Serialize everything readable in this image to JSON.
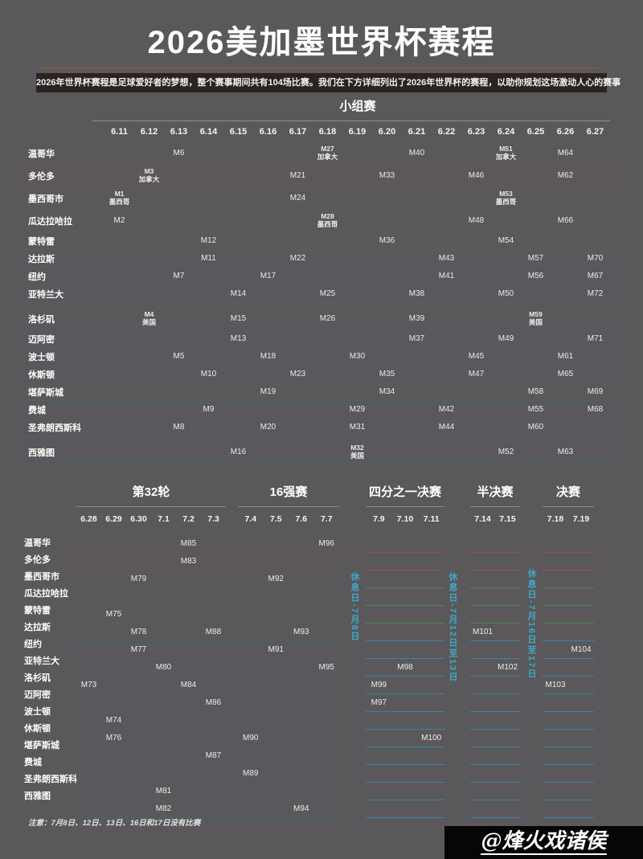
{
  "title": "2026美加墨世界杯赛程",
  "subtitle": "2026年世界杯赛程是足球爱好者的梦想，整个赛事期间共有104场比赛。我们在下方详细列出了2026年世界杯的赛程，以助你规划这场激动人心的赛事",
  "note": "注意：7月8日、12日、13日、16日和17日没有比赛",
  "watermark": "@烽火戏诸侯",
  "colors": {
    "background": "#5a585a",
    "subtitle_bar": "#29241f",
    "title_divider": "#7d5a49",
    "canada_accent": "#d23c33",
    "mexico_accent": "#4eb44c",
    "usa_accent": "#41a9d8",
    "rest_day_text": "#3fa9c9"
  },
  "chart_data": {
    "type": "table",
    "title": "2026美加墨世界杯赛程",
    "group_stage": {
      "heading": "小组赛",
      "dates": [
        "6.11",
        "6.12",
        "6.13",
        "6.14",
        "6.15",
        "6.16",
        "6.17",
        "6.18",
        "6.19",
        "6.20",
        "6.21",
        "6.22",
        "6.23",
        "6.24",
        "6.25",
        "6.26",
        "6.27"
      ],
      "rows": [
        {
          "city": "温哥华",
          "country": "canada",
          "matches": [
            {
              "date": "6.13",
              "m": "M6"
            },
            {
              "date": "6.18",
              "m": "M27",
              "tag": "加拿大",
              "color": "canada"
            },
            {
              "date": "6.21",
              "m": "M40"
            },
            {
              "date": "6.24",
              "m": "M51",
              "tag": "加拿大",
              "color": "canada"
            },
            {
              "date": "6.26",
              "m": "M64"
            }
          ]
        },
        {
          "city": "多伦多",
          "country": "canada",
          "matches": [
            {
              "date": "6.12",
              "m": "M3",
              "tag": "加拿大",
              "color": "canada"
            },
            {
              "date": "6.17",
              "m": "M21"
            },
            {
              "date": "6.20",
              "m": "M33"
            },
            {
              "date": "6.23",
              "m": "M46"
            },
            {
              "date": "6.26",
              "m": "M62"
            }
          ]
        },
        {
          "city": "墨西哥市",
          "country": "mexico",
          "matches": [
            {
              "date": "6.11",
              "m": "M1",
              "tag": "墨西哥",
              "color": "mexico"
            },
            {
              "date": "6.17",
              "m": "M24"
            },
            {
              "date": "6.24",
              "m": "M53",
              "tag": "墨西哥",
              "color": "mexico"
            }
          ]
        },
        {
          "city": "瓜达拉哈拉",
          "country": "mexico",
          "matches": [
            {
              "date": "6.11",
              "m": "M2"
            },
            {
              "date": "6.18",
              "m": "M28",
              "tag": "墨西哥",
              "color": "mexico"
            },
            {
              "date": "6.23",
              "m": "M48"
            },
            {
              "date": "6.26",
              "m": "M66"
            }
          ]
        },
        {
          "city": "蒙特雷",
          "country": "mexico",
          "matches": [
            {
              "date": "6.14",
              "m": "M12"
            },
            {
              "date": "6.20",
              "m": "M36"
            },
            {
              "date": "6.24",
              "m": "M54"
            }
          ]
        },
        {
          "city": "达拉斯",
          "country": "usa",
          "matches": [
            {
              "date": "6.14",
              "m": "M11"
            },
            {
              "date": "6.17",
              "m": "M22"
            },
            {
              "date": "6.22",
              "m": "M43"
            },
            {
              "date": "6.25",
              "m": "M57"
            },
            {
              "date": "6.27",
              "m": "M70"
            }
          ]
        },
        {
          "city": "纽约",
          "country": "usa",
          "matches": [
            {
              "date": "6.13",
              "m": "M7"
            },
            {
              "date": "6.16",
              "m": "M17"
            },
            {
              "date": "6.22",
              "m": "M41"
            },
            {
              "date": "6.25",
              "m": "M56"
            },
            {
              "date": "6.27",
              "m": "M67"
            }
          ]
        },
        {
          "city": "亚特兰大",
          "country": "usa",
          "matches": [
            {
              "date": "6.15",
              "m": "M14"
            },
            {
              "date": "6.18",
              "m": "M25"
            },
            {
              "date": "6.21",
              "m": "M38"
            },
            {
              "date": "6.24",
              "m": "M50"
            },
            {
              "date": "6.27",
              "m": "M72"
            }
          ]
        },
        {
          "city": "洛杉矶",
          "country": "usa",
          "gap": true,
          "matches": [
            {
              "date": "6.12",
              "m": "M4",
              "tag": "美国",
              "color": "usa"
            },
            {
              "date": "6.15",
              "m": "M15"
            },
            {
              "date": "6.18",
              "m": "M26"
            },
            {
              "date": "6.21",
              "m": "M39"
            },
            {
              "date": "6.25",
              "m": "M59",
              "tag": "美国",
              "color": "usa"
            }
          ]
        },
        {
          "city": "迈阿密",
          "country": "usa",
          "matches": [
            {
              "date": "6.15",
              "m": "M13"
            },
            {
              "date": "6.21",
              "m": "M37"
            },
            {
              "date": "6.24",
              "m": "M49"
            },
            {
              "date": "6.27",
              "m": "M71"
            }
          ]
        },
        {
          "city": "波士顿",
          "country": "usa",
          "matches": [
            {
              "date": "6.13",
              "m": "M5"
            },
            {
              "date": "6.16",
              "m": "M18"
            },
            {
              "date": "6.19",
              "m": "M30"
            },
            {
              "date": "6.23",
              "m": "M45"
            },
            {
              "date": "6.26",
              "m": "M61"
            }
          ]
        },
        {
          "city": "休斯顿",
          "country": "usa",
          "matches": [
            {
              "date": "6.14",
              "m": "M10"
            },
            {
              "date": "6.17",
              "m": "M23"
            },
            {
              "date": "6.20",
              "m": "M35"
            },
            {
              "date": "6.23",
              "m": "M47"
            },
            {
              "date": "6.26",
              "m": "M65"
            }
          ]
        },
        {
          "city": "堪萨斯城",
          "country": "usa",
          "matches": [
            {
              "date": "6.16",
              "m": "M19"
            },
            {
              "date": "6.20",
              "m": "M34"
            },
            {
              "date": "6.25",
              "m": "M58"
            },
            {
              "date": "6.27",
              "m": "M69"
            }
          ]
        },
        {
          "city": "费城",
          "country": "usa",
          "matches": [
            {
              "date": "6.14",
              "m": "M9"
            },
            {
              "date": "6.19",
              "m": "M29"
            },
            {
              "date": "6.22",
              "m": "M42"
            },
            {
              "date": "6.25",
              "m": "M55"
            },
            {
              "date": "6.27",
              "m": "M68"
            }
          ]
        },
        {
          "city": "圣弗朗西斯科",
          "country": "usa",
          "matches": [
            {
              "date": "6.13",
              "m": "M8"
            },
            {
              "date": "6.16",
              "m": "M20"
            },
            {
              "date": "6.19",
              "m": "M31"
            },
            {
              "date": "6.22",
              "m": "M44"
            },
            {
              "date": "6.25",
              "m": "M60"
            }
          ]
        },
        {
          "city": "西雅图",
          "country": "usa",
          "gap": true,
          "matches": [
            {
              "date": "6.15",
              "m": "M16"
            },
            {
              "date": "6.19",
              "m": "M32",
              "tag": "美国",
              "color": "usa"
            },
            {
              "date": "6.24",
              "m": "M52"
            },
            {
              "date": "6.26",
              "m": "M63"
            }
          ]
        }
      ]
    },
    "knockout": {
      "sections": [
        {
          "name": "第32轮",
          "dates": [
            "6.28",
            "6.29",
            "6.30",
            "7.1",
            "7.2",
            "7.3"
          ]
        },
        {
          "name": "16强赛",
          "dates": [
            "7.4",
            "7.5",
            "7.6",
            "7.7"
          ]
        },
        {
          "name": "四分之一决赛",
          "dates": [
            "7.9",
            "7.10",
            "7.11"
          ]
        },
        {
          "name": "半决赛",
          "dates": [
            "7.14",
            "7.15"
          ]
        },
        {
          "name": "决赛",
          "dates": [
            "7.18",
            "7.19"
          ]
        }
      ],
      "rest_labels": [
        "休息日-7月8日",
        "休息日-7月12日至13日",
        "休息日-7月16日至17日"
      ],
      "rows": [
        {
          "city": "温哥华",
          "country": "canada",
          "ko": [
            {
              "sec": 0,
              "date": "7.2",
              "m": "M85"
            },
            {
              "sec": 1,
              "date": "7.7",
              "m": "M96"
            }
          ]
        },
        {
          "city": "多伦多",
          "country": "canada",
          "ko": [
            {
              "sec": 0,
              "date": "7.2",
              "m": "M83"
            }
          ]
        },
        {
          "city": "墨西哥市",
          "country": "mexico",
          "ko": [
            {
              "sec": 0,
              "date": "6.30",
              "m": "M79"
            },
            {
              "sec": 1,
              "date": "7.5",
              "m": "M92"
            }
          ]
        },
        {
          "city": "瓜达拉哈拉",
          "country": "mexico",
          "ko": []
        },
        {
          "city": "蒙特雷",
          "country": "mexico",
          "ko": [
            {
              "sec": 0,
              "date": "6.29",
              "m": "M75"
            }
          ]
        },
        {
          "city": "达拉斯",
          "country": "usa",
          "ko": [
            {
              "sec": 0,
              "date": "6.30",
              "m": "M78"
            },
            {
              "sec": 0,
              "date": "7.3",
              "m": "M88"
            },
            {
              "sec": 1,
              "date": "7.6",
              "m": "M93"
            },
            {
              "sec": 3,
              "date": "7.14",
              "m": "M101"
            }
          ]
        },
        {
          "city": "纽约",
          "country": "usa",
          "ko": [
            {
              "sec": 0,
              "date": "6.30",
              "m": "M77"
            },
            {
              "sec": 1,
              "date": "7.5",
              "m": "M91"
            },
            {
              "sec": 4,
              "date": "7.19",
              "m": "M104"
            }
          ]
        },
        {
          "city": "亚特兰大",
          "country": "usa",
          "ko": [
            {
              "sec": 0,
              "date": "7.1",
              "m": "M80"
            },
            {
              "sec": 1,
              "date": "7.7",
              "m": "M95"
            },
            {
              "sec": 2,
              "date": "7.10",
              "m": "M98"
            },
            {
              "sec": 3,
              "date": "7.15",
              "m": "M102"
            }
          ]
        },
        {
          "city": "洛杉矶",
          "country": "usa",
          "ko": [
            {
              "sec": 0,
              "date": "6.28",
              "m": "M73"
            },
            {
              "sec": 0,
              "date": "7.2",
              "m": "M84"
            },
            {
              "sec": 2,
              "date": "7.9",
              "m": "M99"
            },
            {
              "sec": 4,
              "date": "7.18",
              "m": "M103"
            }
          ]
        },
        {
          "city": "迈阿密",
          "country": "usa",
          "ko": [
            {
              "sec": 0,
              "date": "7.3",
              "m": "M86"
            },
            {
              "sec": 2,
              "date": "7.9",
              "m": "M97"
            }
          ]
        },
        {
          "city": "波士顿",
          "country": "usa",
          "ko": [
            {
              "sec": 0,
              "date": "6.29",
              "m": "M74"
            }
          ]
        },
        {
          "city": "休斯顿",
          "country": "usa",
          "ko": [
            {
              "sec": 0,
              "date": "6.29",
              "m": "M76"
            },
            {
              "sec": 1,
              "date": "7.4",
              "m": "M90"
            },
            {
              "sec": 2,
              "date": "7.11",
              "m": "M100"
            }
          ]
        },
        {
          "city": "堪萨斯城",
          "country": "usa",
          "ko": [
            {
              "sec": 0,
              "date": "7.3",
              "m": "M87"
            }
          ]
        },
        {
          "city": "费城",
          "country": "usa",
          "ko": [
            {
              "sec": 1,
              "date": "7.4",
              "m": "M89"
            }
          ]
        },
        {
          "city": "圣弗朗西斯科",
          "country": "usa",
          "ko": [
            {
              "sec": 0,
              "date": "7.1",
              "m": "M81"
            }
          ]
        },
        {
          "city": "西雅图",
          "country": "usa",
          "ko": [
            {
              "sec": 0,
              "date": "7.1",
              "m": "M82"
            },
            {
              "sec": 1,
              "date": "7.6",
              "m": "M94"
            }
          ]
        }
      ]
    }
  }
}
